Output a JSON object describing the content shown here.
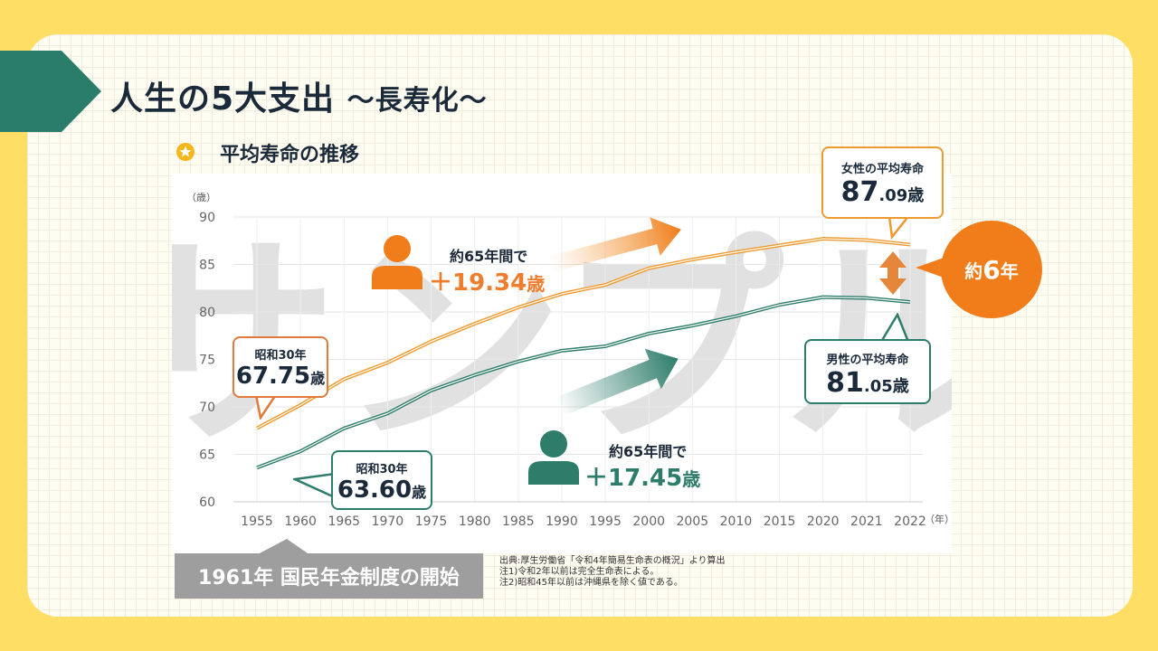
{
  "header": {
    "title": "人生の5大支出",
    "title_sub": "〜長寿化〜",
    "subtitle": "平均寿命の推移"
  },
  "footer": {
    "event_label": "1961年 国民年金制度の開始",
    "notes": [
      "出典:厚生労働省「令和4年簡易生命表の概況」より算出",
      "注1)令和2年以前は完全生命表による。",
      "注2)昭和45年以前は沖縄県を除く値である。"
    ]
  },
  "callouts": {
    "female_current_label": "女性の平均寿命",
    "female_current_int": "87",
    "female_current_dec": ".09歳",
    "male_current_label": "男性の平均寿命",
    "male_current_int": "81",
    "male_current_dec": ".05歳",
    "female_start_label": "昭和30年",
    "female_start_int": "67.75",
    "female_start_unit": "歳",
    "male_start_label": "昭和30年",
    "male_start_int": "63.60",
    "male_start_unit": "歳",
    "female_gain_label": "約65年間で",
    "female_gain_value": "＋19.34",
    "female_gain_unit": "歳",
    "male_gain_label": "約65年間で",
    "male_gain_value": "＋17.45",
    "male_gain_unit": "歳",
    "gap_prefix": "約",
    "gap_num": "6",
    "gap_suffix": "年"
  },
  "watermark": "サンプル",
  "colors": {
    "female": "#ee9a2e",
    "male": "#2e7d6b",
    "accent_orange": "#f07d1a",
    "banner_teal": "#2b7d6b",
    "title_text": "#1b2a3a"
  },
  "chart_data": {
    "type": "line",
    "categories": [
      "1955",
      "1960",
      "1965",
      "1970",
      "1975",
      "1980",
      "1985",
      "1990",
      "1995",
      "2000",
      "2005",
      "2010",
      "2015",
      "2020",
      "2021",
      "2022"
    ],
    "series": [
      {
        "name": "女性の平均寿命",
        "values": [
          67.75,
          70.19,
          72.92,
          74.66,
          76.89,
          78.76,
          80.48,
          81.9,
          82.85,
          84.6,
          85.52,
          86.3,
          87.01,
          87.71,
          87.57,
          87.09
        ]
      },
      {
        "name": "男性の平均寿命",
        "values": [
          63.6,
          65.32,
          67.74,
          69.31,
          71.73,
          73.35,
          74.78,
          75.92,
          76.38,
          77.72,
          78.56,
          79.55,
          80.75,
          81.56,
          81.47,
          81.05
        ]
      }
    ],
    "ylim": [
      60,
      90
    ],
    "yticks": [
      60,
      65,
      70,
      75,
      80,
      85,
      90
    ],
    "ylabel": "（歳）",
    "xlabel": "（年）",
    "grid": true
  }
}
